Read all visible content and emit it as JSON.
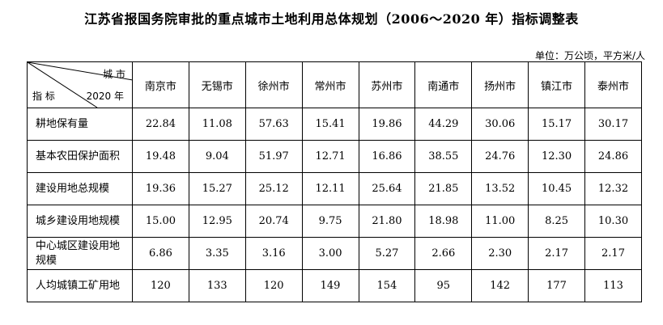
{
  "title": "江苏省报国务院审批的重点城市土地利用总体规划（2006～2020 年）指标调整表",
  "unit": "单位：万公顷，平方米/人",
  "corner": {
    "top": "城 市",
    "bottom_left": "指 标",
    "bottom_right": "2020 年"
  },
  "columns": [
    "南京市",
    "无锡市",
    "徐州市",
    "常州市",
    "苏州市",
    "南通市",
    "扬州市",
    "镇江市",
    "泰州市"
  ],
  "rows": [
    {
      "label": "耕地保有量",
      "values": [
        "22.84",
        "11.08",
        "57.63",
        "15.41",
        "19.86",
        "44.29",
        "30.06",
        "15.17",
        "30.17"
      ]
    },
    {
      "label": "基本农田保护面积",
      "values": [
        "19.48",
        "9.04",
        "51.97",
        "12.71",
        "16.86",
        "38.55",
        "24.76",
        "12.30",
        "24.86"
      ]
    },
    {
      "label": "建设用地总规模",
      "values": [
        "19.36",
        "15.27",
        "25.12",
        "12.11",
        "25.64",
        "21.85",
        "13.52",
        "10.45",
        "12.32"
      ]
    },
    {
      "label": "城乡建设用地规模",
      "values": [
        "15.00",
        "12.95",
        "20.74",
        "9.75",
        "21.80",
        "18.98",
        "11.00",
        "8.25",
        "10.30"
      ]
    },
    {
      "label": "中心城区建设用地规模",
      "values": [
        "6.86",
        "3.35",
        "3.16",
        "3.00",
        "5.27",
        "2.66",
        "2.30",
        "2.17",
        "2.17"
      ]
    },
    {
      "label": "人均城镇工矿用地",
      "values": [
        "120",
        "133",
        "120",
        "149",
        "154",
        "95",
        "142",
        "177",
        "113"
      ]
    }
  ]
}
